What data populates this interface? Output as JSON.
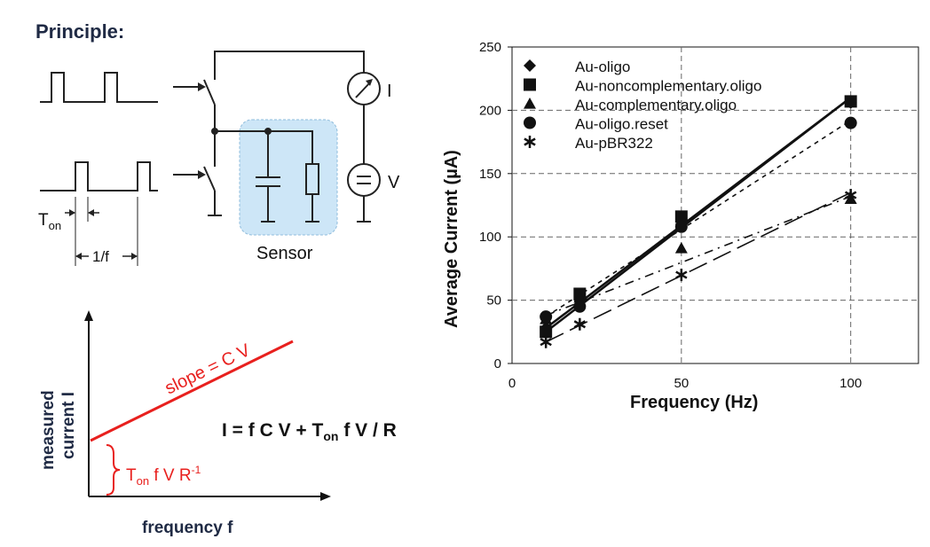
{
  "heading": "Principle:",
  "circuit": {
    "ton_label": "T",
    "ton_sub": "on",
    "period_label": "1/f",
    "meter_label": "I",
    "source_label": "V",
    "sensor_label": "Sensor"
  },
  "concept_plot": {
    "ylabel_line1": "measured",
    "ylabel_line2": "current I",
    "xlabel": "frequency f",
    "slope_label": "slope = C V",
    "formula": {
      "p1": "I = f C V + T",
      "sub": "on",
      "p2": " f V / R"
    },
    "offset": {
      "t": "T",
      "sub": "on",
      "mid": " f V R",
      "sup": "-1"
    },
    "colors": {
      "accent": "#e8201e"
    }
  },
  "chart_data": {
    "type": "scatter",
    "title": "",
    "xlabel": "Frequency (Hz)",
    "ylabel": "Average Current (µA)",
    "xlim": [
      0,
      120
    ],
    "ylim": [
      0,
      250
    ],
    "xticks": [
      0,
      50,
      100
    ],
    "yticks": [
      0,
      50,
      100,
      150,
      200,
      250
    ],
    "grid": true,
    "legend_position": "top-left",
    "series": [
      {
        "name": "Au-oligo",
        "marker": "diamond",
        "x": [
          10,
          20,
          50,
          100
        ],
        "y": [
          28,
          50,
          110,
          206
        ],
        "trend": [
          [
            10,
            28
          ],
          [
            100,
            210
          ]
        ],
        "dash": ""
      },
      {
        "name": "Au-noncomplementary.oligo",
        "marker": "square",
        "x": [
          10,
          20,
          50,
          100
        ],
        "y": [
          25,
          55,
          116,
          207
        ],
        "trend": [
          [
            10,
            25
          ],
          [
            100,
            210
          ]
        ],
        "dash": ""
      },
      {
        "name": "Au-complementary.oligo",
        "marker": "triangle",
        "x": [
          10,
          20,
          50,
          100
        ],
        "y": [
          35,
          52,
          91,
          130
        ],
        "trend": [
          [
            10,
            38
          ],
          [
            100,
            132
          ]
        ],
        "dash": "10,6,2,6"
      },
      {
        "name": "Au-oligo.reset",
        "marker": "circle",
        "x": [
          10,
          20,
          50,
          100
        ],
        "y": [
          37,
          45,
          108,
          190
        ],
        "trend": [
          [
            10,
            37
          ],
          [
            100,
            192
          ]
        ],
        "dash": "5,5"
      },
      {
        "name": "Au-pBR322",
        "marker": "asterisk",
        "x": [
          10,
          20,
          50,
          100
        ],
        "y": [
          17,
          31,
          70,
          133
        ],
        "trend": [
          [
            10,
            17
          ],
          [
            100,
            135
          ]
        ],
        "dash": "22,8"
      }
    ]
  }
}
